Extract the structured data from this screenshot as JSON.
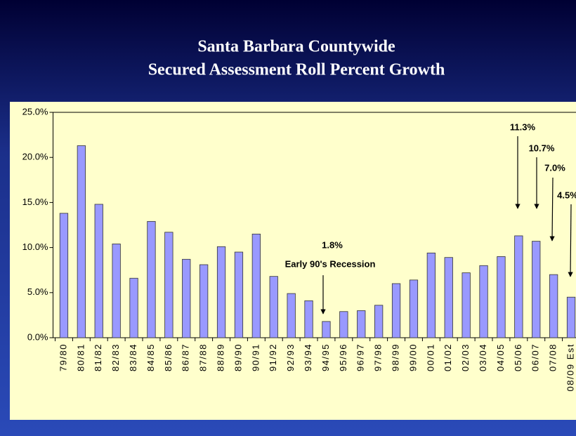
{
  "chart_data": {
    "type": "bar",
    "title": [
      "Santa Barbara Countywide",
      "Secured Assessment Roll Percent Growth"
    ],
    "categories": [
      "79/80",
      "80/81",
      "81/82",
      "82/83",
      "83/84",
      "84/85",
      "85/86",
      "86/87",
      "87/88",
      "88/89",
      "89/90",
      "90/91",
      "91/92",
      "92/93",
      "93/94",
      "94/95",
      "95/96",
      "96/97",
      "97/98",
      "98/99",
      "99/00",
      "00/01",
      "01/02",
      "02/03",
      "03/04",
      "04/05",
      "05/06",
      "06/07",
      "07/08",
      "08/09 Est"
    ],
    "values": [
      13.8,
      21.3,
      14.8,
      10.4,
      6.6,
      12.9,
      11.7,
      8.7,
      8.1,
      10.1,
      9.5,
      11.5,
      6.8,
      4.9,
      4.1,
      1.8,
      2.9,
      3.0,
      3.6,
      6.0,
      6.4,
      9.4,
      8.9,
      7.2,
      8.0,
      9.0,
      11.3,
      10.7,
      7.0,
      4.5
    ],
    "color": "#9999ff",
    "ylim": [
      0,
      25
    ],
    "yticks": [
      {
        "value": 0,
        "label": "0.0%"
      },
      {
        "value": 5,
        "label": "5.0%"
      },
      {
        "value": 10,
        "label": "10.0%"
      },
      {
        "value": 15,
        "label": "15.0%"
      },
      {
        "value": 20,
        "label": "20.0%"
      },
      {
        "value": 25,
        "label": "25.0%"
      }
    ],
    "annotations": [
      "1.8%",
      "Early 90's Recession",
      "11.3%",
      "10.7%",
      "7.0%",
      "4.5%"
    ]
  }
}
